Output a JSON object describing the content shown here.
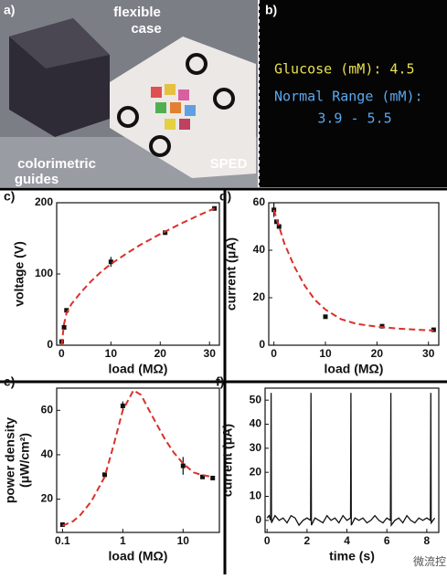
{
  "photo": {
    "panel_label": "a)",
    "labels": [
      "flexible",
      "case",
      "colorimetric",
      "guides",
      "SPED"
    ]
  },
  "display": {
    "panel_label": "b)",
    "lines": [
      "Glucose (mM): 4.5",
      "Normal Range (mM):",
      "3.9 - 5.5"
    ]
  },
  "chart_data": [
    {
      "type": "scatter",
      "panel_label": "c)",
      "x_label": "load (MΩ)",
      "y_label": [
        "voltage (V)"
      ],
      "xlim": [
        -1,
        32
      ],
      "ylim": [
        0,
        200
      ],
      "xticks": [
        0,
        10,
        20,
        30
      ],
      "yticks": [
        0,
        100,
        200
      ],
      "series": [
        {
          "color": "#111111",
          "style": "points",
          "x": [
            0,
            0.5,
            1,
            10,
            21,
            31
          ],
          "values": [
            5,
            25,
            49,
            117,
            158,
            192
          ],
          "errors": [
            null,
            null,
            null,
            7,
            null,
            null
          ]
        },
        {
          "color": "#d9312b",
          "style": "dashed",
          "x": [
            0,
            0.5,
            1,
            2,
            4,
            6,
            8,
            10,
            13,
            16,
            20,
            24,
            28,
            31
          ],
          "values": [
            0,
            30,
            45,
            58,
            75,
            90,
            103,
            114,
            128,
            141,
            156,
            170,
            183,
            192
          ]
        }
      ]
    },
    {
      "type": "scatter",
      "panel_label": "d)",
      "x_label": "load (MΩ)",
      "y_label": [
        "current (μA)"
      ],
      "xlim": [
        -1,
        32
      ],
      "ylim": [
        0,
        60
      ],
      "xticks": [
        0,
        10,
        20,
        30
      ],
      "yticks": [
        0,
        20,
        40,
        60
      ],
      "series": [
        {
          "color": "#111111",
          "style": "points",
          "x": [
            0,
            0.5,
            1,
            10,
            21,
            31
          ],
          "values": [
            57,
            52,
            50,
            12,
            8,
            6.5
          ],
          "errors": [
            3,
            null,
            null,
            null,
            null,
            null
          ]
        },
        {
          "color": "#d9312b",
          "style": "dashed",
          "x": [
            0,
            1,
            2,
            4,
            6,
            8,
            10,
            13,
            16,
            20,
            24,
            28,
            31
          ],
          "values": [
            57,
            50,
            43,
            33,
            25,
            19,
            15,
            11,
            9,
            7.8,
            7,
            6.5,
            6.2
          ]
        }
      ]
    },
    {
      "type": "scatter",
      "panel_label": "e)",
      "x_label": "load (MΩ)",
      "y_label": [
        "power density",
        "(μW/cm²)"
      ],
      "xscale": "log",
      "xlim": [
        0.08,
        40
      ],
      "ylim": [
        5,
        70
      ],
      "xticks": [
        0.1,
        1,
        10
      ],
      "yticks": [
        20,
        40,
        60
      ],
      "series": [
        {
          "color": "#111111",
          "style": "points",
          "x": [
            0.1,
            0.5,
            1,
            10,
            21,
            31
          ],
          "values": [
            8.5,
            31,
            62,
            35,
            30,
            29.5
          ],
          "errors": [
            null,
            null,
            2,
            4,
            null,
            null
          ]
        },
        {
          "color": "#d9312b",
          "style": "dashed",
          "x": [
            0.1,
            0.15,
            0.2,
            0.3,
            0.5,
            0.7,
            1,
            1.5,
            2,
            3,
            5,
            7,
            10,
            15,
            20,
            30
          ],
          "values": [
            8,
            10,
            13,
            19,
            30,
            44,
            60,
            69,
            67,
            58,
            47,
            41,
            36,
            32,
            31,
            30
          ]
        }
      ]
    },
    {
      "type": "line",
      "panel_label": "f)",
      "x_label": "time (s)",
      "y_label": [
        "current (μA)"
      ],
      "xlim": [
        -0.1,
        8.6
      ],
      "ylim": [
        -5,
        55
      ],
      "xticks": [
        0,
        2,
        4,
        6,
        8
      ],
      "yticks": [
        0,
        10,
        20,
        30,
        40,
        50
      ],
      "series": [
        {
          "color": "#111111",
          "style": "solid",
          "x": [
            0,
            0.1,
            0.18,
            0.2,
            0.22,
            0.4,
            0.6,
            0.8,
            1.0,
            1.2,
            1.4,
            1.6,
            1.8,
            2.0,
            2.18,
            2.2,
            2.22,
            2.4,
            2.6,
            2.8,
            3.0,
            3.2,
            3.4,
            3.6,
            3.8,
            4.0,
            4.18,
            4.2,
            4.22,
            4.4,
            4.6,
            4.8,
            5.0,
            5.2,
            5.4,
            5.6,
            5.8,
            6.0,
            6.18,
            6.2,
            6.22,
            6.4,
            6.6,
            6.8,
            7.0,
            7.2,
            7.4,
            7.6,
            7.8,
            8.0,
            8.18,
            8.2,
            8.22,
            8.4
          ],
          "values": [
            1,
            2,
            0,
            53,
            -1,
            2,
            0,
            1,
            -1,
            2,
            1,
            -2,
            0,
            1,
            0,
            53,
            -2,
            1,
            0,
            -1,
            2,
            0,
            1,
            -1,
            2,
            0,
            1,
            53,
            -2,
            1,
            0,
            1,
            -1,
            0,
            2,
            0,
            -1,
            1,
            0,
            53,
            -2,
            0,
            1,
            -1,
            2,
            0,
            -1,
            1,
            0,
            1,
            0,
            53,
            -1,
            1
          ]
        }
      ]
    }
  ],
  "watermark": "微流控"
}
